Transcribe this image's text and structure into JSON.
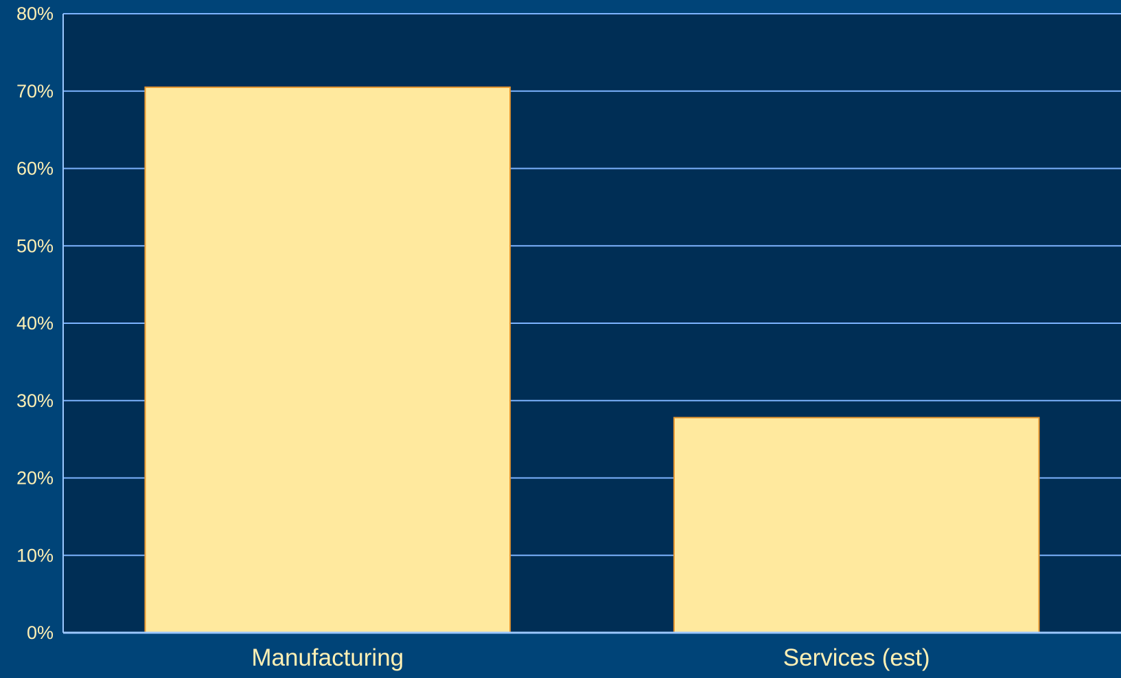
{
  "colors": {
    "page_background": "#004478",
    "plot_background": "#002e55",
    "gridline": "#7eb4ff",
    "axis_line": "#9cc8ff",
    "bar_fill": "#ffe99e",
    "bar_stroke": "#e8962e",
    "tick_text": "#fff0b4"
  },
  "chart_data": {
    "type": "bar",
    "categories": [
      "Manufacturing",
      "Services (est)"
    ],
    "values": [
      70.5,
      27.8
    ],
    "ylim": [
      0,
      80
    ],
    "y_ticks": [
      0,
      10,
      20,
      30,
      40,
      50,
      60,
      70,
      80
    ],
    "y_tick_labels": [
      "0%",
      "10%",
      "20%",
      "30%",
      "40%",
      "50%",
      "60%",
      "70%",
      "80%"
    ],
    "title": "",
    "xlabel": "",
    "ylabel": "",
    "grid": true,
    "legend": "none"
  }
}
